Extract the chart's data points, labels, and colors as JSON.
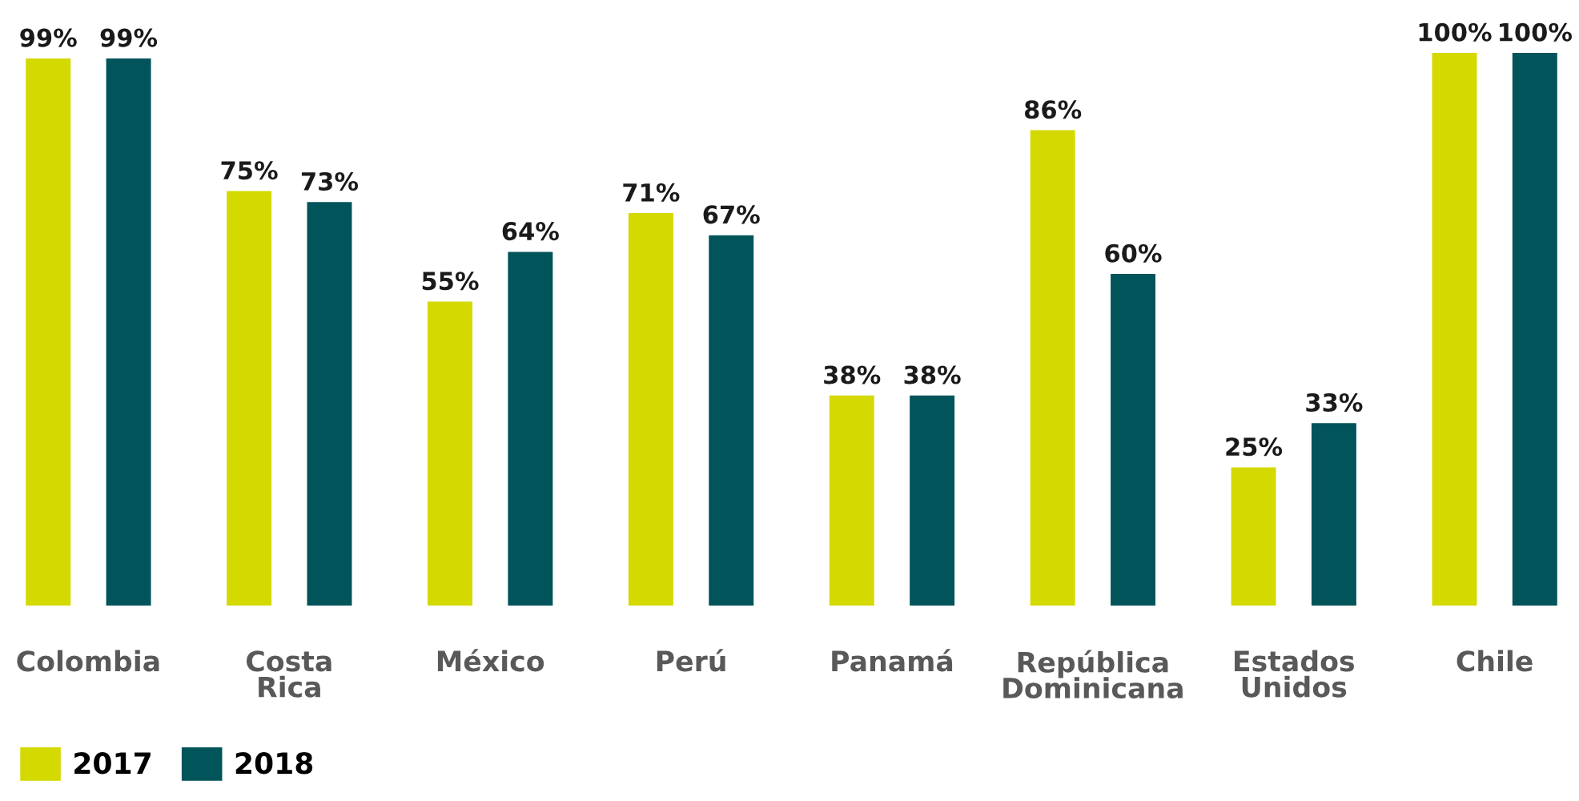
{
  "chart_data": {
    "type": "bar",
    "categories": [
      "Colombia",
      "Costa\nRica",
      "México",
      "Perú",
      "Panamá",
      "República\nDominicana",
      "Estados\nUnidos",
      "Chile"
    ],
    "series": [
      {
        "name": "2017",
        "color": "#d4d900",
        "values": [
          99,
          75,
          55,
          71,
          38,
          86,
          25,
          100
        ],
        "value_labels": [
          "99%",
          "75%",
          "55%",
          "71%",
          "38%",
          "86%",
          "25%",
          "100%"
        ]
      },
      {
        "name": "2018",
        "color": "#00545a",
        "values": [
          99,
          73,
          64,
          67,
          38,
          60,
          33,
          100
        ],
        "value_labels": [
          "99%",
          "73%",
          "64%",
          "67%",
          "38%",
          "60%",
          "33%",
          "100%"
        ]
      }
    ],
    "legend": "bottom left"
  }
}
